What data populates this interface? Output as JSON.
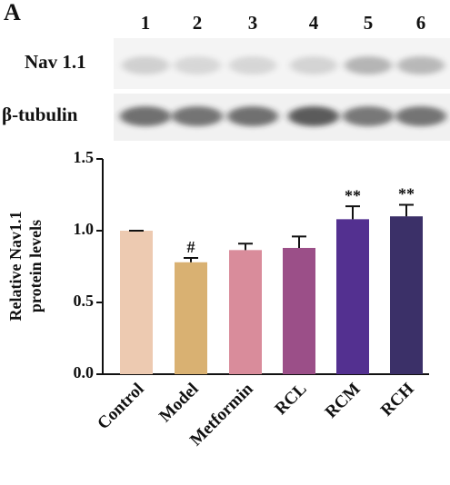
{
  "blot": {
    "panel": "A",
    "lanes": [
      "1",
      "2",
      "3",
      "4",
      "5",
      "6"
    ],
    "rows": [
      "Nav 1.1",
      "β-tubulin"
    ]
  },
  "chart_data": {
    "type": "bar",
    "y_label": [
      "Relative Nav1.1",
      "protein levels"
    ],
    "categories": [
      "Control",
      "Model",
      "Metformin",
      "RCL",
      "RCM",
      "RCH"
    ],
    "values": [
      1.0,
      0.78,
      0.865,
      0.88,
      1.08,
      1.1
    ],
    "errors": [
      0,
      0.03,
      0.045,
      0.08,
      0.09,
      0.08
    ],
    "value_annotations": [
      null,
      "#",
      null,
      null,
      "**",
      "**"
    ],
    "colors": [
      "#edcab1",
      "#d9b172",
      "#d98c9b",
      "#9b4f88",
      "#533090",
      "#3b3068"
    ],
    "ylim": [
      0,
      1.5
    ],
    "yticks": [
      {
        "value": 0,
        "label": "0.0"
      },
      0.5,
      {
        "value": 1,
        "label": "1.0"
      },
      {
        "value": 1.5,
        "label": "1.5"
      }
    ]
  }
}
